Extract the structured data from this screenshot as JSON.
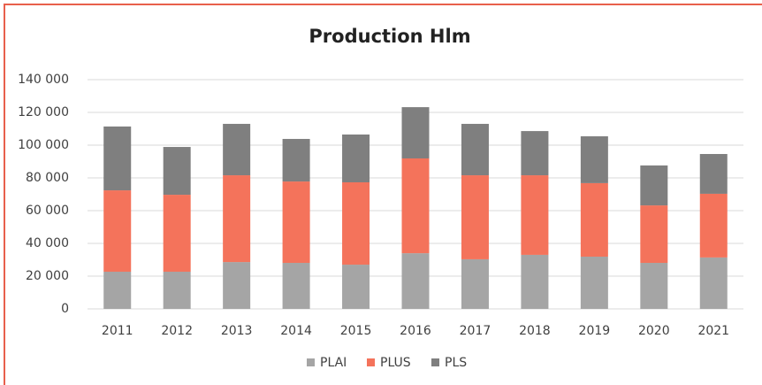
{
  "chart_data": {
    "type": "stacked_bar",
    "title": "Production Hlm",
    "categories": [
      "2011",
      "2012",
      "2013",
      "2014",
      "2015",
      "2016",
      "2017",
      "2018",
      "2019",
      "2020",
      "2021"
    ],
    "series": [
      {
        "name": "PLAI",
        "color": "#a5a5a5",
        "values": [
          22700,
          22700,
          28600,
          28100,
          27000,
          34000,
          30300,
          33000,
          31900,
          28100,
          31400
        ]
      },
      {
        "name": "PLUS",
        "color": "#f4735b",
        "values": [
          49700,
          47000,
          53000,
          49700,
          50300,
          57900,
          51300,
          48600,
          44900,
          35100,
          38900
        ]
      },
      {
        "name": "PLS",
        "color": "#7f7f7f",
        "values": [
          39000,
          29200,
          31400,
          26000,
          29200,
          31300,
          31400,
          27000,
          28600,
          24400,
          24300
        ]
      }
    ],
    "ylim": [
      0,
      140000
    ],
    "yticks": [
      0,
      {
        "value": 20000,
        "label": "20 000"
      },
      {
        "value": 40000,
        "label": "40 000"
      },
      {
        "value": 60000,
        "label": "60 000"
      },
      {
        "value": 80000,
        "label": "80 000"
      },
      {
        "value": 100000,
        "label": "100 000"
      },
      {
        "value": 120000,
        "label": "120 000"
      },
      {
        "value": 140000,
        "label": "140 000"
      }
    ],
    "grid": true,
    "legend": "bottom"
  }
}
